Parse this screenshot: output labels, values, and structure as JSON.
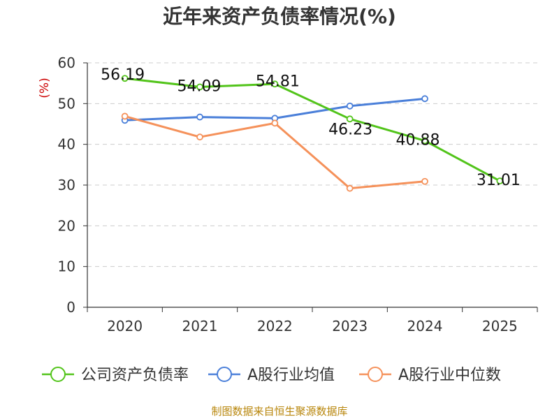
{
  "chart_data": {
    "type": "line",
    "title": "近年来资产负债率情况(%)",
    "ylabel": "(%)",
    "categories": [
      "2020",
      "2021",
      "2022",
      "2023",
      "2024",
      "2025"
    ],
    "ylim": [
      0,
      60
    ],
    "yticks": [
      "0",
      "10",
      "20",
      "30",
      "40",
      "50",
      "60"
    ],
    "grid": true,
    "legend_position": "bottom",
    "series": [
      {
        "name": "公司资产负债率",
        "color": "#52c41a",
        "values": [
          56.19,
          54.09,
          54.81,
          46.23,
          40.88,
          31.01
        ],
        "labels": [
          "56.19",
          "54.09",
          "54.81",
          "46.23",
          "40.88",
          "31.01"
        ]
      },
      {
        "name": "A股行业均值",
        "color": "#4a7fd9",
        "values": [
          45.9,
          46.7,
          46.4,
          49.4,
          51.2,
          null
        ]
      },
      {
        "name": "A股行业中位数",
        "color": "#f5915a",
        "values": [
          46.9,
          41.8,
          45.2,
          29.2,
          30.9,
          null
        ]
      }
    ]
  },
  "footer": "制图数据来自恒生聚源数据库"
}
